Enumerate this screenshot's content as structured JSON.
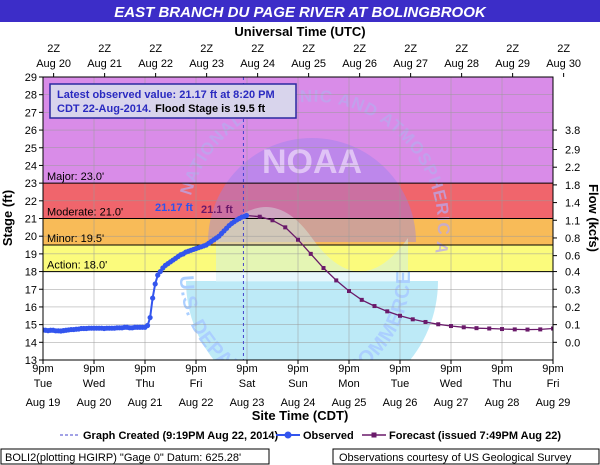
{
  "chart_data": {
    "type": "line",
    "title": "EAST BRANCH DU PAGE RIVER AT BOLINGBROOK",
    "top_axis_title": "Universal Time (UTC)",
    "top_ticks": [
      {
        "hh": "2Z",
        "date": "Aug 20"
      },
      {
        "hh": "2Z",
        "date": "Aug 21"
      },
      {
        "hh": "2Z",
        "date": "Aug 22"
      },
      {
        "hh": "2Z",
        "date": "Aug 23"
      },
      {
        "hh": "2Z",
        "date": "Aug 24"
      },
      {
        "hh": "2Z",
        "date": "Aug 25"
      },
      {
        "hh": "2Z",
        "date": "Aug 26"
      },
      {
        "hh": "2Z",
        "date": "Aug 27"
      },
      {
        "hh": "2Z",
        "date": "Aug 28"
      },
      {
        "hh": "2Z",
        "date": "Aug 29"
      },
      {
        "hh": "2Z",
        "date": "Aug 30"
      }
    ],
    "xlabel": "Site Time (CDT)",
    "bottom_ticks": [
      {
        "time": "9pm",
        "day": "Tue",
        "date": "Aug 19"
      },
      {
        "time": "9pm",
        "day": "Wed",
        "date": "Aug 20"
      },
      {
        "time": "9pm",
        "day": "Thu",
        "date": "Aug 21"
      },
      {
        "time": "9pm",
        "day": "Fri",
        "date": "Aug 22"
      },
      {
        "time": "9pm",
        "day": "Sat",
        "date": "Aug 23"
      },
      {
        "time": "9pm",
        "day": "Sun",
        "date": "Aug 24"
      },
      {
        "time": "9pm",
        "day": "Mon",
        "date": "Aug 25"
      },
      {
        "time": "9pm",
        "day": "Tue",
        "date": "Aug 26"
      },
      {
        "time": "9pm",
        "day": "Wed",
        "date": "Aug 27"
      },
      {
        "time": "9pm",
        "day": "Thu",
        "date": "Aug 28"
      },
      {
        "time": "9pm",
        "day": "Fri",
        "date": "Aug 29"
      }
    ],
    "x_unit": "days after 9pm Aug 19 CDT",
    "xlim": [
      0,
      10
    ],
    "ylabel": "Stage (ft)",
    "ylim": [
      13,
      29
    ],
    "y_ticks": [
      13,
      14,
      15,
      16,
      17,
      18,
      19,
      20,
      21,
      22,
      23,
      24,
      25,
      26,
      27,
      28,
      29
    ],
    "y2label": "Flow (kcfs)",
    "y2_ticks": [
      {
        "stage": 14.0,
        "label": "0.0"
      },
      {
        "stage": 15.0,
        "label": "0.1"
      },
      {
        "stage": 16.0,
        "label": "0.2"
      },
      {
        "stage": 17.0,
        "label": "0.3"
      },
      {
        "stage": 18.0,
        "label": "0.4"
      },
      {
        "stage": 18.9,
        "label": "0.6"
      },
      {
        "stage": 19.9,
        "label": "0.8"
      },
      {
        "stage": 20.9,
        "label": "1.1"
      },
      {
        "stage": 21.9,
        "label": "1.4"
      },
      {
        "stage": 22.9,
        "label": "1.8"
      },
      {
        "stage": 23.9,
        "label": "2.2"
      },
      {
        "stage": 24.9,
        "label": "2.9"
      },
      {
        "stage": 26.0,
        "label": "3.8"
      }
    ],
    "flood_categories": [
      {
        "name": "Major",
        "label": "Major: 23.0'",
        "from": 23.0,
        "to": 29.0,
        "color": "#d98ce8"
      },
      {
        "name": "Moderate",
        "label": "Moderate: 21.0'",
        "from": 21.0,
        "to": 23.0,
        "color": "#f0656c"
      },
      {
        "name": "Minor",
        "label": "Minor: 19.5'",
        "from": 19.5,
        "to": 21.0,
        "color": "#f8bb58"
      },
      {
        "name": "Action",
        "label": "Action: 18.0'",
        "from": 18.0,
        "to": 19.5,
        "color": "#fbfb7c"
      }
    ],
    "info_box": {
      "line1": "Latest observed value: 21.17 ft at 8:20 PM",
      "line2": "CDT 22-Aug-2014.",
      "line3": "Flood Stage is 19.5 ft"
    },
    "peak_obs_label": "21.17 ft",
    "peak_fcst_label": "21.1 ft",
    "series": [
      {
        "name": "Observed",
        "color": "#3355ee",
        "points": [
          [
            0.0,
            14.7
          ],
          [
            0.05,
            14.68
          ],
          [
            0.1,
            14.66
          ],
          [
            0.15,
            14.68
          ],
          [
            0.2,
            14.68
          ],
          [
            0.25,
            14.65
          ],
          [
            0.3,
            14.65
          ],
          [
            0.35,
            14.64
          ],
          [
            0.4,
            14.66
          ],
          [
            0.45,
            14.68
          ],
          [
            0.5,
            14.7
          ],
          [
            0.55,
            14.72
          ],
          [
            0.6,
            14.72
          ],
          [
            0.65,
            14.74
          ],
          [
            0.7,
            14.75
          ],
          [
            0.75,
            14.78
          ],
          [
            0.8,
            14.78
          ],
          [
            0.85,
            14.78
          ],
          [
            0.9,
            14.8
          ],
          [
            0.95,
            14.8
          ],
          [
            1.0,
            14.8
          ],
          [
            1.05,
            14.8
          ],
          [
            1.1,
            14.8
          ],
          [
            1.15,
            14.8
          ],
          [
            1.2,
            14.78
          ],
          [
            1.25,
            14.8
          ],
          [
            1.3,
            14.8
          ],
          [
            1.35,
            14.8
          ],
          [
            1.4,
            14.8
          ],
          [
            1.45,
            14.82
          ],
          [
            1.5,
            14.82
          ],
          [
            1.55,
            14.82
          ],
          [
            1.6,
            14.85
          ],
          [
            1.65,
            14.85
          ],
          [
            1.7,
            14.82
          ],
          [
            1.75,
            14.82
          ],
          [
            1.8,
            14.85
          ],
          [
            1.85,
            14.85
          ],
          [
            1.9,
            14.85
          ],
          [
            1.95,
            14.85
          ],
          [
            2.0,
            14.85
          ],
          [
            2.05,
            14.95
          ],
          [
            2.1,
            15.4
          ],
          [
            2.15,
            16.5
          ],
          [
            2.2,
            17.3
          ],
          [
            2.25,
            17.8
          ],
          [
            2.3,
            18.0
          ],
          [
            2.35,
            18.2
          ],
          [
            2.4,
            18.35
          ],
          [
            2.45,
            18.45
          ],
          [
            2.5,
            18.55
          ],
          [
            2.55,
            18.65
          ],
          [
            2.6,
            18.75
          ],
          [
            2.65,
            18.85
          ],
          [
            2.7,
            18.95
          ],
          [
            2.75,
            19.0
          ],
          [
            2.8,
            19.1
          ],
          [
            2.85,
            19.15
          ],
          [
            2.9,
            19.2
          ],
          [
            2.95,
            19.25
          ],
          [
            3.0,
            19.3
          ],
          [
            3.05,
            19.35
          ],
          [
            3.1,
            19.4
          ],
          [
            3.15,
            19.45
          ],
          [
            3.2,
            19.5
          ],
          [
            3.25,
            19.6
          ],
          [
            3.3,
            19.7
          ],
          [
            3.35,
            19.8
          ],
          [
            3.4,
            19.9
          ],
          [
            3.45,
            20.0
          ],
          [
            3.5,
            20.15
          ],
          [
            3.55,
            20.3
          ],
          [
            3.6,
            20.45
          ],
          [
            3.65,
            20.6
          ],
          [
            3.7,
            20.72
          ],
          [
            3.75,
            20.82
          ],
          [
            3.8,
            20.92
          ],
          [
            3.85,
            21.0
          ],
          [
            3.9,
            21.08
          ],
          [
            3.95,
            21.12
          ],
          [
            3.99,
            21.17
          ]
        ]
      },
      {
        "name": "Forecast",
        "color": "#6a1a6a",
        "points": [
          [
            3.99,
            21.17
          ],
          [
            4.25,
            21.1
          ],
          [
            4.5,
            20.9
          ],
          [
            4.75,
            20.5
          ],
          [
            5.0,
            19.8
          ],
          [
            5.25,
            19.0
          ],
          [
            5.5,
            18.2
          ],
          [
            5.75,
            17.5
          ],
          [
            6.0,
            16.9
          ],
          [
            6.25,
            16.4
          ],
          [
            6.5,
            16.05
          ],
          [
            6.75,
            15.75
          ],
          [
            7.0,
            15.5
          ],
          [
            7.25,
            15.3
          ],
          [
            7.5,
            15.15
          ],
          [
            7.75,
            15.02
          ],
          [
            8.0,
            14.92
          ],
          [
            8.25,
            14.85
          ],
          [
            8.5,
            14.8
          ],
          [
            8.75,
            14.78
          ],
          [
            9.0,
            14.75
          ],
          [
            9.25,
            14.73
          ],
          [
            9.5,
            14.72
          ],
          [
            9.75,
            14.73
          ],
          [
            10.0,
            14.78
          ]
        ]
      }
    ],
    "graph_created_x": 3.93,
    "legend": {
      "graph_created": "Graph Created (9:19PM Aug 22, 2014)",
      "observed": "Observed",
      "forecast": "Forecast (issued 7:49PM Aug 22)"
    },
    "footer": {
      "left": "BOLI2(plotting HGIRP) \"Gage 0\" Datum: 625.28'",
      "right": "Observations courtesy of US Geological Survey"
    },
    "watermark": {
      "seal_text": "NATIONAL OCEANIC AND ATMOSPHERIC ADMINISTRATION",
      "noaa": "NOAA",
      "dept_text": "U.S. DEPARTMENT OF COMMERCE"
    }
  }
}
